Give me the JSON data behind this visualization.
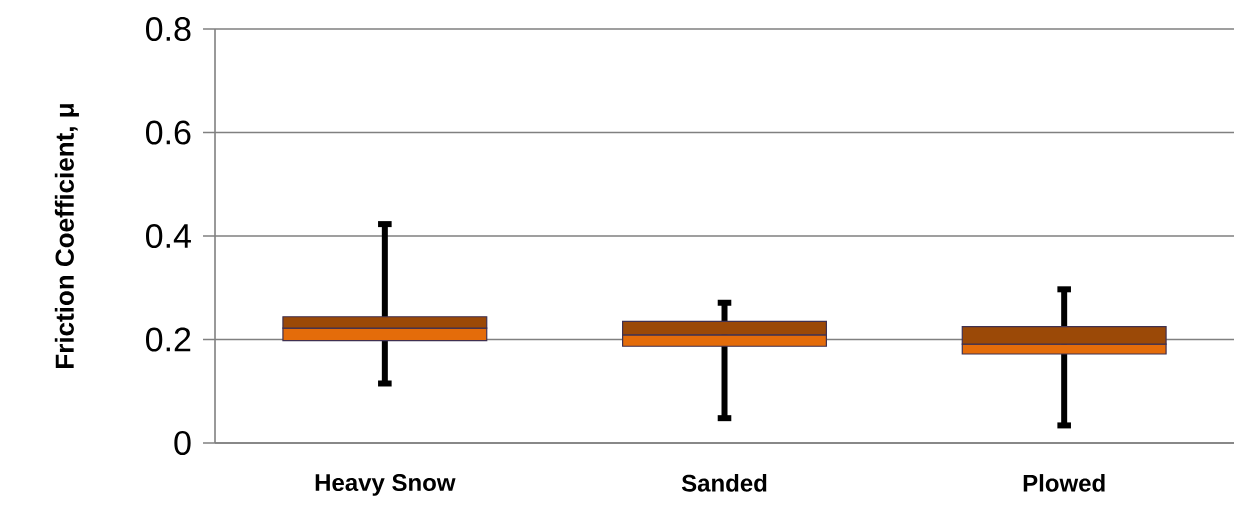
{
  "chart_data": {
    "type": "box",
    "ylabel": "Friction Coefficient, μ",
    "categories": [
      "Heavy Snow",
      "Sanded",
      "Plowed"
    ],
    "series": [
      {
        "color": "#e46c0a",
        "boxes": [
          {
            "low": 0.115,
            "q1": 0.198,
            "median": 0.222,
            "q3": 0.244,
            "high": 0.423
          },
          {
            "low": 0.048,
            "q1": 0.187,
            "median": 0.209,
            "q3": 0.235,
            "high": 0.271
          },
          {
            "low": 0.034,
            "q1": 0.172,
            "median": 0.191,
            "q3": 0.225,
            "high": 0.297
          }
        ]
      }
    ],
    "ylim": [
      0,
      0.8
    ],
    "yticks": [
      0,
      0.2,
      0.4,
      0.6,
      0.8
    ],
    "grid": "y"
  }
}
